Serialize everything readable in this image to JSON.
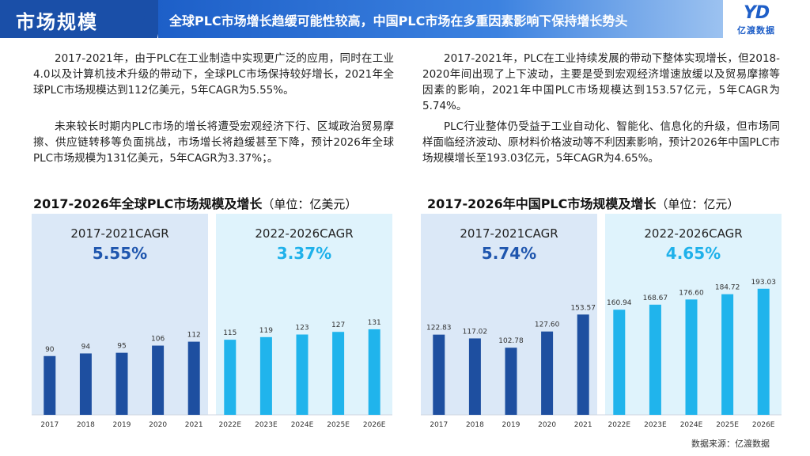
{
  "header": {
    "section_title": "市场规模",
    "headline": "全球PLC市场增长趋缓可能性较高，中国PLC市场在多重因素影响下保持增长势头"
  },
  "logo": {
    "mark": "YD",
    "name": "亿渡数据"
  },
  "left_text": {
    "p1": "2017-2021年，由于PLC在工业制造中实现更广泛的应用，同时在工业4.0以及计算机技术升级的带动下，全球PLC市场保持较好增长，2021年全球PLC市场规模达到112亿美元，5年CAGR为5.55%。",
    "p2": "未来较长时期内PLC市场的增长将遭受宏观经济下行、区域政治贸易摩擦、供应链转移等负面挑战，市场增长将趋缓甚至下降，预计2026年全球PLC市场规模为131亿美元，5年CAGR为3.37%；。"
  },
  "right_text": {
    "p1": "2017-2021年，PLC在工业持续发展的带动下整体实现增长，但2018-2020年间出现了上下波动，主要是受到宏观经济增速放缓以及贸易摩擦等因素的影响，2021年中国PLC市场规模达到153.57亿元，5年CAGR为5.74%。",
    "p2": "PLC行业整体仍受益于工业自动化、智能化、信息化的升级，但市场同样面临经济波动、原材料价格波动等不利因素影响，预计2026年中国PLC市场规模增长至193.03亿元，5年CAGR为4.65%。"
  },
  "colors": {
    "dark_bar": "#1e4fa0",
    "light_bar": "#20b4ec",
    "dark_panel": "#dbe8f7",
    "light_panel": "#dff3fc",
    "dark_cagr": "#1f56ae",
    "light_cagr": "#1fb1ea"
  },
  "chart_data": [
    {
      "type": "bar",
      "title": "2017-2026年全球PLC市场规模及增长",
      "unit": "（单位：亿美元）",
      "categories": [
        "2017",
        "2018",
        "2019",
        "2020",
        "2021",
        "2022E",
        "2023E",
        "2024E",
        "2025E",
        "2026E"
      ],
      "values": [
        90,
        94,
        95,
        106,
        112,
        115,
        119,
        123,
        127,
        131
      ],
      "labels": [
        "90",
        "94",
        "95",
        "106",
        "112",
        "115",
        "119",
        "123",
        "127",
        "131"
      ],
      "periods": [
        {
          "label": "2017-2021CAGR",
          "value": "5.55%",
          "start": 0,
          "end": 4
        },
        {
          "label": "2022-2026CAGR",
          "value": "3.37%",
          "start": 5,
          "end": 9
        }
      ]
    },
    {
      "type": "bar",
      "title": "2017-2026年中国PLC市场规模及增长",
      "unit": "（单位：亿元）",
      "categories": [
        "2017",
        "2018",
        "2019",
        "2020",
        "2021",
        "2022E",
        "2023E",
        "2024E",
        "2025E",
        "2026E"
      ],
      "values": [
        122.83,
        117.02,
        102.78,
        127.6,
        153.57,
        160.94,
        168.67,
        176.6,
        184.72,
        193.03
      ],
      "labels": [
        "122.83",
        "117.02",
        "102.78",
        "127.60",
        "153.57",
        "160.94",
        "168.67",
        "176.60",
        "184.72",
        "193.03"
      ],
      "periods": [
        {
          "label": "2017-2021CAGR",
          "value": "5.74%",
          "start": 0,
          "end": 4
        },
        {
          "label": "2022-2026CAGR",
          "value": "4.65%",
          "start": 5,
          "end": 9
        }
      ]
    }
  ],
  "footer": {
    "source": "数据来源：亿渡数据"
  }
}
